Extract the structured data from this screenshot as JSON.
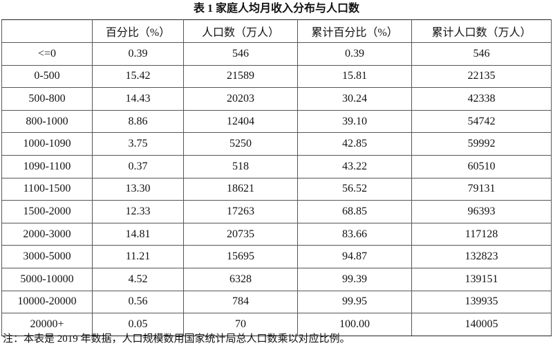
{
  "title": "表 1  家庭人均月收入分布与人口数",
  "table": {
    "header": [
      "",
      "百分比（%）",
      "人口数（万人）",
      "累计百分比（%）",
      "累计人口数（万人）"
    ],
    "rows": [
      [
        "<=0",
        "0.39",
        "546",
        "0.39",
        "546"
      ],
      [
        "0-500",
        "15.42",
        "21589",
        "15.81",
        "22135"
      ],
      [
        "500-800",
        "14.43",
        "20203",
        "30.24",
        "42338"
      ],
      [
        "800-1000",
        "8.86",
        "12404",
        "39.10",
        "54742"
      ],
      [
        "1000-1090",
        "3.75",
        "5250",
        "42.85",
        "59992"
      ],
      [
        "1090-1100",
        "0.37",
        "518",
        "43.22",
        "60510"
      ],
      [
        "1100-1500",
        "13.30",
        "18621",
        "56.52",
        "79131"
      ],
      [
        "1500-2000",
        "12.33",
        "17263",
        "68.85",
        "96393"
      ],
      [
        "2000-3000",
        "14.81",
        "20735",
        "83.66",
        "117128"
      ],
      [
        "3000-5000",
        "11.21",
        "15695",
        "94.87",
        "132823"
      ],
      [
        "5000-10000",
        "4.52",
        "6328",
        "99.39",
        "139151"
      ],
      [
        "10000-20000",
        "0.56",
        "784",
        "99.95",
        "139935"
      ],
      [
        "20000+",
        "0.05",
        "70",
        "100.00",
        "140005"
      ]
    ]
  },
  "note": "注：本表是 2019 年数据，人口规模数用国家统计局总人口数乘以对应比例。"
}
